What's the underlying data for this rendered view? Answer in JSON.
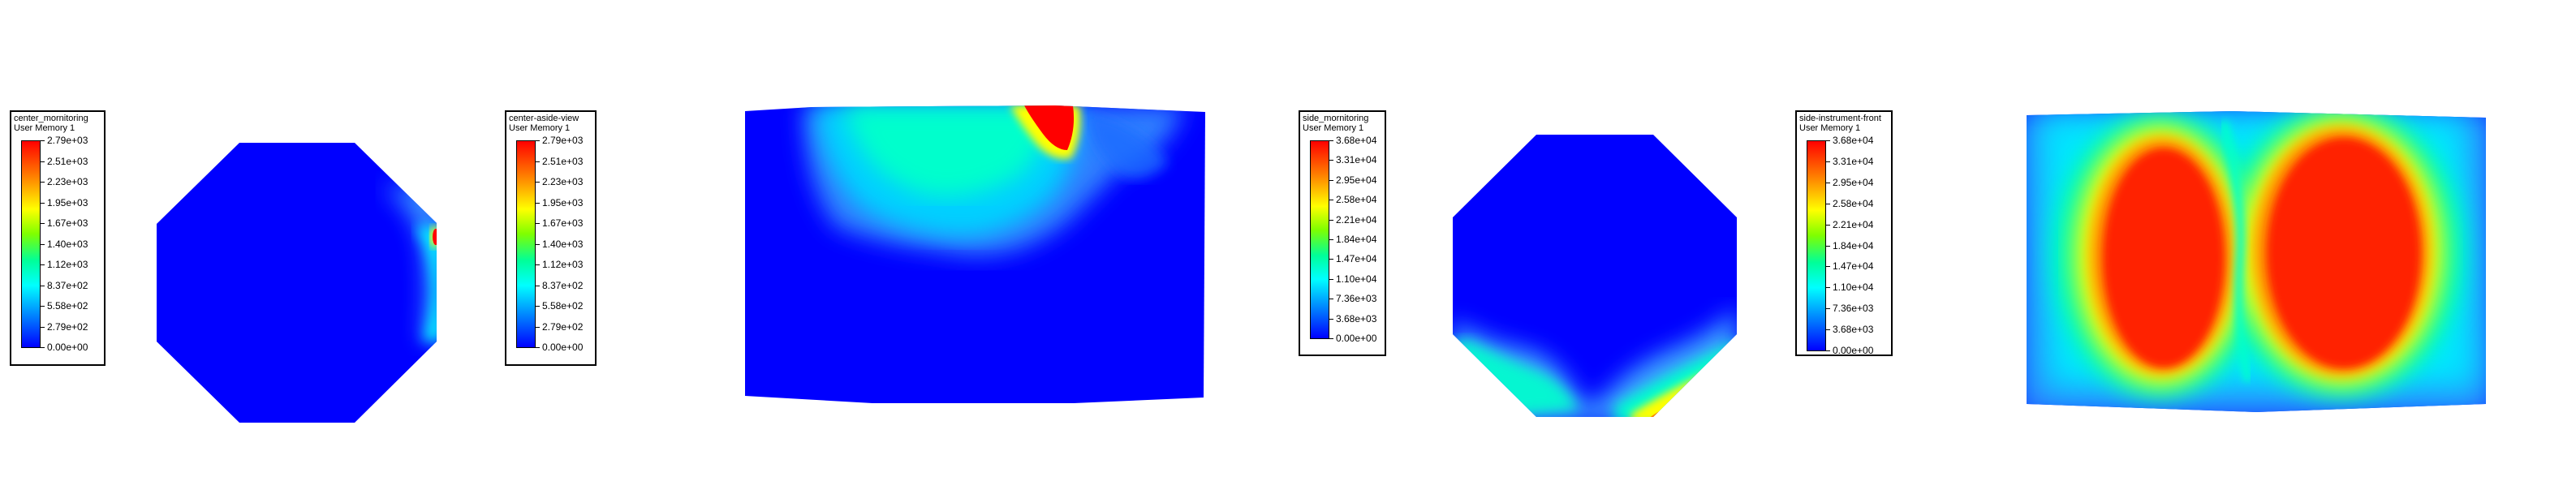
{
  "legends": [
    {
      "title": "center_mornitoring",
      "subtitle": "User Memory 1",
      "ticks": [
        "2.79e+03",
        "2.51e+03",
        "2.23e+03",
        "1.95e+03",
        "1.67e+03",
        "1.40e+03",
        "1.12e+03",
        "8.37e+02",
        "5.58e+02",
        "2.79e+02",
        "0.00e+00"
      ]
    },
    {
      "title": "center-aside-view",
      "subtitle": "User Memory 1",
      "ticks": [
        "2.79e+03",
        "2.51e+03",
        "2.23e+03",
        "1.95e+03",
        "1.67e+03",
        "1.40e+03",
        "1.12e+03",
        "8.37e+02",
        "5.58e+02",
        "2.79e+02",
        "0.00e+00"
      ]
    },
    {
      "title": "side_mornitoring",
      "subtitle": "User Memory 1",
      "ticks": [
        "3.68e+04",
        "3.31e+04",
        "2.95e+04",
        "2.58e+04",
        "2.21e+04",
        "1.84e+04",
        "1.47e+04",
        "1.10e+04",
        "7.36e+03",
        "3.68e+03",
        "0.00e+00"
      ]
    },
    {
      "title": "side-instrument-front",
      "subtitle": "User Memory 1",
      "ticks": [
        "3.68e+04",
        "3.31e+04",
        "2.95e+04",
        "2.58e+04",
        "2.21e+04",
        "1.84e+04",
        "1.47e+04",
        "1.10e+04",
        "7.36e+03",
        "3.68e+03",
        "0.00e+00"
      ]
    }
  ],
  "colors": {
    "low": "#0000ff",
    "high": "#ff0000"
  }
}
